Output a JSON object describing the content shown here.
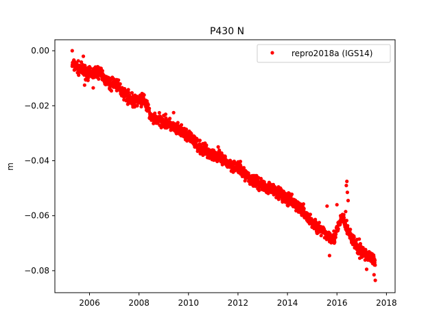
{
  "chart_data": {
    "type": "scatter",
    "title": "P430 N",
    "xlabel": "",
    "ylabel": "m",
    "xlim": [
      2004.6,
      2018.35
    ],
    "ylim": [
      -0.088,
      0.004
    ],
    "x_ticks": [
      2006,
      2008,
      2010,
      2012,
      2014,
      2016,
      2018
    ],
    "y_ticks": [
      0.0,
      -0.02,
      -0.04,
      -0.06,
      -0.08
    ],
    "y_tick_labels": [
      "0.00",
      "−0.02",
      "−0.04",
      "−0.06",
      "−0.08"
    ],
    "grid": false,
    "legend": {
      "position": "top-right",
      "entries": [
        "repro2018a (IGS14)"
      ]
    },
    "series": [
      {
        "name": "repro2018a (IGS14)",
        "color": "#ff0000",
        "marker": "circle",
        "trend": [
          [
            2005.3,
            -0.005
          ],
          [
            2005.7,
            -0.007
          ],
          [
            2006.0,
            -0.0085
          ],
          [
            2006.4,
            -0.0075
          ],
          [
            2006.8,
            -0.0125
          ],
          [
            2007.0,
            -0.0115
          ],
          [
            2007.4,
            -0.0155
          ],
          [
            2007.8,
            -0.0185
          ],
          [
            2008.2,
            -0.0175
          ],
          [
            2008.5,
            -0.0245
          ],
          [
            2009.0,
            -0.0255
          ],
          [
            2009.5,
            -0.0285
          ],
          [
            2010.0,
            -0.031
          ],
          [
            2010.5,
            -0.0355
          ],
          [
            2011.0,
            -0.0375
          ],
          [
            2011.5,
            -0.0405
          ],
          [
            2012.0,
            -0.0425
          ],
          [
            2012.5,
            -0.0465
          ],
          [
            2013.0,
            -0.049
          ],
          [
            2013.5,
            -0.0505
          ],
          [
            2014.0,
            -0.054
          ],
          [
            2014.5,
            -0.057
          ],
          [
            2015.0,
            -0.0625
          ],
          [
            2015.5,
            -0.0665
          ],
          [
            2015.9,
            -0.068
          ],
          [
            2016.2,
            -0.0605
          ],
          [
            2016.5,
            -0.0665
          ],
          [
            2016.9,
            -0.073
          ],
          [
            2017.3,
            -0.0745
          ],
          [
            2017.55,
            -0.077
          ]
        ],
        "spread": 0.0022,
        "outliers": [
          [
            2005.3,
            0.0
          ],
          [
            2005.75,
            -0.002
          ],
          [
            2005.8,
            -0.0125
          ],
          [
            2006.15,
            -0.0135
          ],
          [
            2007.1,
            -0.0105
          ],
          [
            2009.4,
            -0.0225
          ],
          [
            2011.2,
            -0.035
          ],
          [
            2015.6,
            -0.0565
          ],
          [
            2016.0,
            -0.056
          ],
          [
            2016.4,
            -0.0475
          ],
          [
            2016.38,
            -0.049
          ],
          [
            2016.42,
            -0.0515
          ],
          [
            2016.45,
            -0.0545
          ],
          [
            2016.35,
            -0.0585
          ],
          [
            2015.7,
            -0.0745
          ],
          [
            2016.6,
            -0.0695
          ],
          [
            2016.9,
            -0.0685
          ],
          [
            2017.55,
            -0.0835
          ],
          [
            2017.5,
            -0.0815
          ],
          [
            2017.2,
            -0.0795
          ]
        ]
      }
    ]
  }
}
